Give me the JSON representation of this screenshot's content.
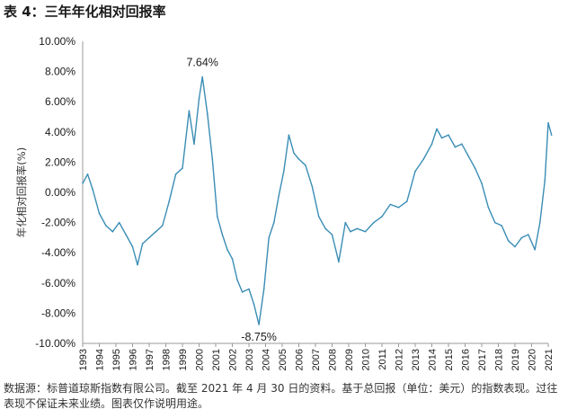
{
  "header": {
    "title": "表 4：三年年化相对回报率"
  },
  "footer": {
    "note": "数据源：标普道琼斯指数有限公司。截至 2021 年 4 月 30 日的资料。基于总回报（单位：美元）的指数表现。过往表现不保证未来业绩。图表仅作说明用途。"
  },
  "chart_data": {
    "type": "line",
    "title": "表 4：三年年化相对回报率",
    "xlabel": "",
    "ylabel": "年化相对回报率(%)",
    "ylim": [
      -10,
      10
    ],
    "y_ticks": [
      "10.00%",
      "8.00%",
      "6.00%",
      "4.00%",
      "2.00%",
      "0.00%",
      "-2.00%",
      "-4.00%",
      "-6.00%",
      "-8.00%",
      "-10.00%"
    ],
    "x_ticks": [
      "1993",
      "1994",
      "1995",
      "1996",
      "1997",
      "1998",
      "1999",
      "2000",
      "2001",
      "2002",
      "2003",
      "2004",
      "2005",
      "2006",
      "2007",
      "2008",
      "2009",
      "2010",
      "2011",
      "2012",
      "2013",
      "2014",
      "2015",
      "2016",
      "2017",
      "2018",
      "2019",
      "2020",
      "2021"
    ],
    "grid": false,
    "line_color": "#3a8db5",
    "series": [
      {
        "x": [
          1993.0,
          1993.3,
          1993.6,
          1994.0,
          1994.4,
          1994.8,
          1995.2,
          1995.6,
          1996.0,
          1996.3,
          1996.6,
          1997.0,
          1997.4,
          1997.8,
          1998.2,
          1998.6,
          1999.0,
          1999.4,
          1999.7,
          2000.0,
          2000.2,
          2000.5,
          2000.8,
          2001.1,
          2001.4,
          2001.7,
          2002.0,
          2002.3,
          2002.6,
          2003.0,
          2003.3,
          2003.6,
          2003.9,
          2004.2,
          2004.5,
          2004.8,
          2005.1,
          2005.4,
          2005.7,
          2006.0,
          2006.4,
          2006.8,
          2007.2,
          2007.6,
          2008.0,
          2008.4,
          2008.8,
          2009.1,
          2009.5,
          2010.0,
          2010.5,
          2011.0,
          2011.5,
          2012.0,
          2012.5,
          2013.0,
          2013.5,
          2014.0,
          2014.3,
          2014.6,
          2015.0,
          2015.4,
          2015.8,
          2016.2,
          2016.6,
          2017.0,
          2017.4,
          2017.8,
          2018.2,
          2018.6,
          2019.0,
          2019.4,
          2019.8,
          2020.2,
          2020.5,
          2020.8,
          2021.0,
          2021.2
        ],
        "y": [
          0.6,
          1.2,
          0.2,
          -1.4,
          -2.2,
          -2.6,
          -2.0,
          -2.8,
          -3.6,
          -4.8,
          -3.4,
          -3.0,
          -2.6,
          -2.2,
          -0.6,
          1.2,
          1.6,
          5.4,
          3.2,
          6.2,
          7.64,
          5.2,
          2.2,
          -1.6,
          -2.8,
          -3.8,
          -4.4,
          -5.8,
          -6.6,
          -6.4,
          -7.4,
          -8.75,
          -6.4,
          -3.0,
          -2.0,
          -0.2,
          1.4,
          3.8,
          2.6,
          2.2,
          1.8,
          0.4,
          -1.6,
          -2.4,
          -2.8,
          -4.6,
          -2.0,
          -2.6,
          -2.4,
          -2.6,
          -2.0,
          -1.6,
          -0.8,
          -1.0,
          -0.6,
          1.4,
          2.2,
          3.2,
          4.2,
          3.6,
          3.8,
          3.0,
          3.2,
          2.4,
          1.6,
          0.6,
          -1.0,
          -2.0,
          -2.2,
          -3.2,
          -3.6,
          -3.0,
          -2.8,
          -3.8,
          -2.0,
          0.8,
          4.6,
          3.8
        ]
      }
    ],
    "annotations": [
      {
        "text": "7.64%",
        "x": 2000.2,
        "y": 7.64
      },
      {
        "text": "-8.75%",
        "x": 2003.6,
        "y": -8.75
      }
    ]
  }
}
